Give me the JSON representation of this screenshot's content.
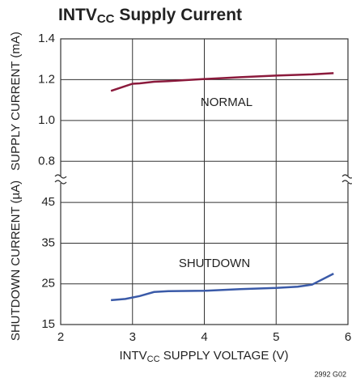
{
  "chart_data": {
    "type": "line",
    "title": {
      "main": "INTV",
      "sub": "CC",
      "rest": " Supply Current"
    },
    "xlabel": {
      "main": "INTV",
      "sub": "CC",
      "rest": " SUPPLY VOLTAGE (V)"
    },
    "xlim": [
      2,
      6
    ],
    "xticks": [
      2,
      3,
      4,
      5,
      6
    ],
    "grid": true,
    "footnote": "2992 G02",
    "panels": [
      {
        "ylabel": "SUPPLY CURRENT (mA)",
        "ylim": [
          0.71,
          1.4
        ],
        "yticks": [
          {
            "value": 0.8,
            "label": "0.8"
          },
          {
            "value": 1,
            "label": "1.0"
          },
          {
            "value": 1.2,
            "label": "1.2"
          },
          {
            "value": 1.4,
            "label": "1.4"
          }
        ],
        "series": [
          {
            "name": "NORMAL",
            "color": "#8b1a3c",
            "x": [
              2.7,
              3.0,
              3.1,
              3.3,
              3.5,
              4.0,
              4.5,
              5.0,
              5.5,
              5.8
            ],
            "values": [
              1.145,
              1.18,
              1.182,
              1.19,
              1.193,
              1.203,
              1.212,
              1.22,
              1.226,
              1.232
            ]
          }
        ]
      },
      {
        "ylabel": "SHUTDOWN CURRENT (µA)",
        "ylim": [
          15,
          50.6
        ],
        "yticks": [
          15,
          25,
          35,
          45
        ],
        "series": [
          {
            "name": "SHUTDOWN",
            "color": "#3a5aa8",
            "x": [
              2.7,
              2.9,
              3.1,
              3.3,
              3.5,
              4.0,
              4.5,
              5.0,
              5.3,
              5.5,
              5.8
            ],
            "values": [
              21,
              21.3,
              22,
              23,
              23.2,
              23.3,
              23.7,
              24,
              24.3,
              24.8,
              27.5
            ]
          }
        ]
      }
    ]
  }
}
